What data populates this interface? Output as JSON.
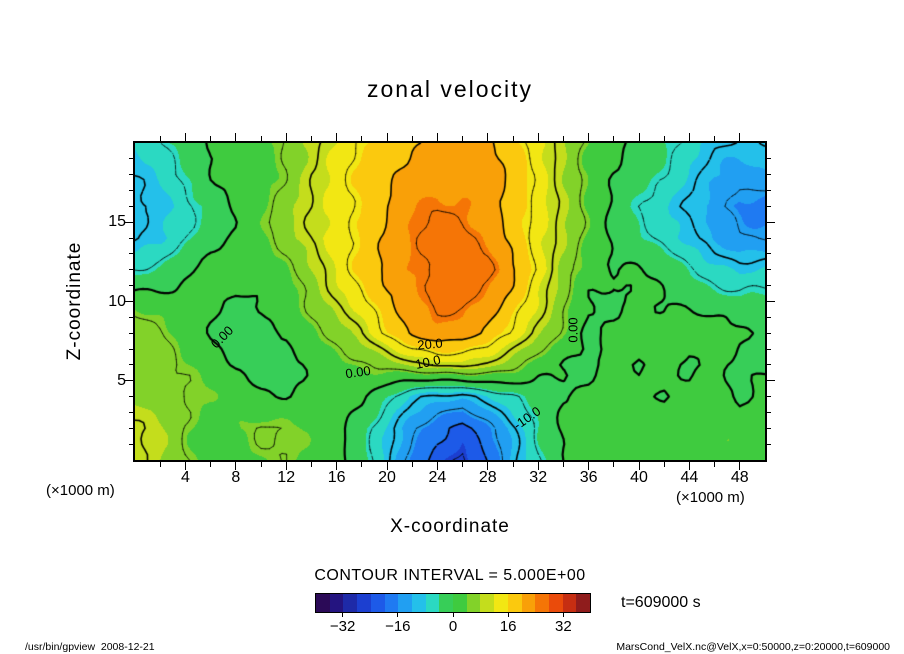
{
  "title": "zonal velocity",
  "contour_info": "CONTOUR INTERVAL = 5.000E+00",
  "time_label": "t=609000 s",
  "footer": {
    "left": "/usr/bin/gpview  2008-12-21",
    "right": "MarsCond_VelX.nc@VelX,x=0:50000,z=0:20000,t=609000"
  },
  "axes": {
    "x": {
      "label": "X-coordinate",
      "unit": "(×1000 m)",
      "min": 0,
      "max": 50,
      "major_ticks": [
        4,
        8,
        12,
        16,
        20,
        24,
        28,
        32,
        36,
        40,
        44,
        48
      ],
      "minor_step": 2
    },
    "z": {
      "label": "Z-coordinate",
      "unit": "(×1000 m)",
      "min": 0,
      "max": 20,
      "major_ticks": [
        5,
        10,
        15
      ],
      "minor_step": 1
    }
  },
  "colorbar": {
    "min": -40,
    "max": 40,
    "ticks": [
      -32,
      -16,
      0,
      16,
      32
    ],
    "colors": [
      "#2b0a57",
      "#241480",
      "#1e2aa8",
      "#1c3fd0",
      "#1d5ae8",
      "#1f7af2",
      "#219ff2",
      "#24c0ea",
      "#2bd9c2",
      "#37ce58",
      "#3fcb3f",
      "#82d229",
      "#c4dd1c",
      "#f2e713",
      "#fbc90e",
      "#f9a008",
      "#f57506",
      "#ea4b0b",
      "#c62e12",
      "#8f1c1c"
    ]
  },
  "contour_labels": [
    {
      "text": "0.00",
      "fx": 0.138,
      "fy": 0.612,
      "rot": -45
    },
    {
      "text": "20.0",
      "fx": 0.468,
      "fy": 0.634,
      "rot": -5
    },
    {
      "text": "10.0",
      "fx": 0.465,
      "fy": 0.691,
      "rot": -12
    },
    {
      "text": "0.00",
      "fx": 0.354,
      "fy": 0.722,
      "rot": -8
    },
    {
      "text": "0.00",
      "fx": 0.695,
      "fy": 0.59,
      "rot": -90
    },
    {
      "text": "-10.0",
      "fx": 0.622,
      "fy": 0.867,
      "rot": -35
    }
  ],
  "chart_data": {
    "type": "heatmap",
    "subtype": "filled-contour",
    "title": "zonal velocity",
    "xlabel": "X-coordinate (×1000 m)",
    "ylabel": "Z-coordinate (×1000 m)",
    "xlim": [
      0,
      50
    ],
    "zlim": [
      0,
      20
    ],
    "contour_interval": 5,
    "contour_levels": [
      -25,
      -20,
      -15,
      -10,
      -5,
      0,
      5,
      10,
      15,
      20,
      25
    ],
    "x": [
      0,
      2,
      4,
      6,
      8,
      10,
      12,
      14,
      16,
      18,
      20,
      22,
      24,
      26,
      28,
      30,
      32,
      34,
      36,
      38,
      40,
      42,
      44,
      46,
      48,
      50
    ],
    "z": [
      0,
      2,
      4,
      6,
      8,
      10,
      12,
      14,
      16,
      18,
      20
    ],
    "values": [
      [
        10,
        8,
        5,
        3,
        3,
        4,
        4,
        3,
        2,
        -2,
        -9,
        -17,
        -23,
        -26,
        -19,
        -11,
        -5,
        -1,
        1,
        2,
        3,
        2,
        3,
        2,
        3,
        2
      ],
      [
        10,
        8,
        5,
        3,
        4,
        5,
        4,
        3,
        2,
        -2,
        -8,
        -15,
        -19,
        -22,
        -16,
        -10,
        -4,
        0,
        2,
        3,
        3,
        4,
        3,
        2,
        3,
        3
      ],
      [
        8,
        7,
        5,
        3,
        2,
        1,
        1,
        2,
        2,
        0,
        -4,
        -8,
        -10,
        -11,
        -9,
        -6,
        -2,
        1,
        2,
        3,
        1,
        -1,
        2,
        4,
        -1,
        2
      ],
      [
        8,
        7,
        4,
        2,
        -1,
        -2,
        -1,
        1,
        3,
        4,
        6,
        9,
        11,
        11,
        9,
        6,
        2,
        0,
        -1,
        2,
        -1,
        2,
        -1,
        2,
        -1,
        -1
      ],
      [
        6,
        5,
        3,
        1,
        -2,
        -2,
        -1,
        3,
        7,
        11,
        16,
        20,
        22,
        22,
        20,
        15,
        9,
        3,
        -2,
        1,
        3,
        2,
        2,
        1,
        0,
        -1
      ],
      [
        3,
        2,
        1,
        1,
        -1,
        0,
        2,
        6,
        10,
        14,
        19,
        23,
        26,
        26,
        23,
        18,
        12,
        6,
        0,
        -1,
        1,
        0,
        -1,
        -2,
        -3,
        -3
      ],
      [
        -4,
        -3,
        -1,
        1,
        2,
        3,
        5,
        8,
        12,
        16,
        21,
        25,
        27,
        27,
        25,
        20,
        14,
        8,
        3,
        0,
        -1,
        -2,
        -4,
        -6,
        -8,
        -8
      ],
      [
        -11,
        -9,
        -5,
        -1,
        1,
        3,
        6,
        10,
        14,
        17,
        21,
        24,
        26,
        26,
        24,
        19,
        13,
        8,
        3,
        -1,
        -3,
        -6,
        -9,
        -13,
        -15,
        -15
      ],
      [
        -12,
        -10,
        -6,
        -2,
        1,
        3,
        6,
        10,
        14,
        17,
        20,
        23,
        24,
        24,
        23,
        19,
        14,
        8,
        3,
        -1,
        -4,
        -7,
        -11,
        -14,
        -17,
        -17
      ],
      [
        -9,
        -7,
        -4,
        -1,
        1,
        3,
        6,
        10,
        13,
        16,
        19,
        22,
        23,
        23,
        22,
        18,
        14,
        9,
        4,
        0,
        -3,
        -5,
        -8,
        -11,
        -13,
        -13
      ],
      [
        -7,
        -5,
        -3,
        0,
        2,
        3,
        6,
        9,
        12,
        15,
        18,
        20,
        22,
        22,
        20,
        17,
        13,
        9,
        4,
        1,
        -2,
        -4,
        -6,
        -9,
        -10,
        -10
      ]
    ]
  }
}
